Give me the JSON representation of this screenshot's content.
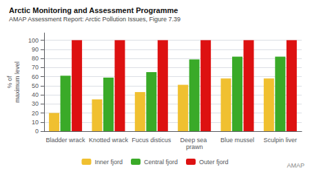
{
  "chart_data": {
    "type": "bar",
    "title": "Arctic Monitoring and Assessment Programme",
    "subtitle": "AMAP Assessment Report: Arctic Pollution Issues, Figure 7.39",
    "annotations": [
      "AMAP"
    ],
    "ylabel": "% of\nmaximum level",
    "categories": [
      "Bladder wrack",
      "Knotted wrack",
      "Fucus disticus",
      "Deep sea prawn",
      "Blue mussel",
      "Sculpin liver"
    ],
    "series": [
      {
        "name": "Inner fjord",
        "color": "#f0c030",
        "values": [
          20,
          35,
          43,
          51,
          58,
          58
        ]
      },
      {
        "name": "Central fjord",
        "color": "#3aaa28",
        "values": [
          61,
          59,
          65,
          79,
          82,
          82
        ]
      },
      {
        "name": "Outer fjord",
        "color": "#dd1111",
        "values": [
          100,
          100,
          100,
          100,
          100,
          100
        ]
      }
    ],
    "ylim": [
      0,
      108
    ],
    "yticks": [
      0,
      10,
      20,
      30,
      40,
      50,
      60,
      70,
      80,
      90,
      100
    ],
    "grid": true,
    "legend": "bottom"
  }
}
